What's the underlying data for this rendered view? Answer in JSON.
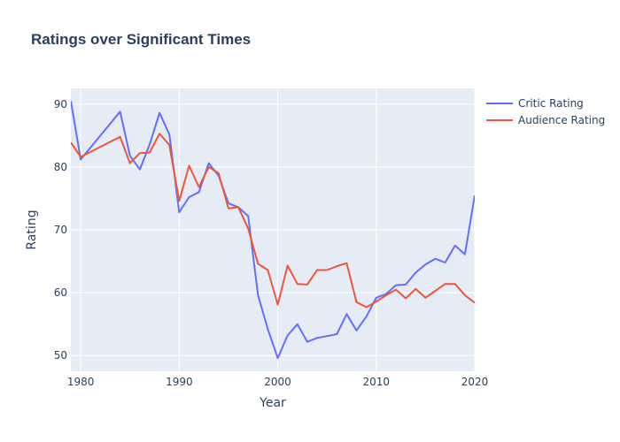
{
  "chart_data": {
    "type": "line",
    "title": "Ratings over Significant Times",
    "xlabel": "Year",
    "ylabel": "Rating",
    "xlim": [
      1979,
      2020
    ],
    "ylim": [
      47.5,
      92.5
    ],
    "xticks": [
      1980,
      1990,
      2000,
      2010,
      2020
    ],
    "yticks": [
      50,
      60,
      70,
      80,
      90
    ],
    "grid": true,
    "legend_position": "top-right",
    "plot_background": "#e5ecf6",
    "grid_color": "#ffffff",
    "series": [
      {
        "name": "Critic Rating",
        "color": "#636efa",
        "x": [
          1979,
          1980,
          1984,
          1985,
          1986,
          1987,
          1988,
          1989,
          1990,
          1991,
          1992,
          1993,
          1994,
          1995,
          1996,
          1997,
          1998,
          1999,
          2000,
          2001,
          2002,
          2003,
          2004,
          2005,
          2006,
          2007,
          2008,
          2009,
          2010,
          2011,
          2012,
          2013,
          2014,
          2015,
          2016,
          2017,
          2018,
          2019,
          2020
        ],
        "values": [
          90.5,
          81.2,
          88.8,
          81.8,
          79.6,
          83.6,
          88.6,
          85.2,
          72.8,
          75.2,
          76.0,
          80.6,
          78.6,
          74.2,
          73.6,
          72.2,
          59.6,
          54.2,
          49.6,
          53.2,
          55.0,
          52.2,
          52.8,
          53.1,
          53.4,
          56.6,
          54.0,
          56.2,
          59.2,
          59.8,
          61.2,
          61.3,
          63.2,
          64.5,
          65.4,
          64.8,
          67.5,
          66.1,
          75.5
        ]
      },
      {
        "name": "Audience Rating",
        "color": "#ef553b",
        "x": [
          1979,
          1980,
          1984,
          1985,
          1986,
          1987,
          1988,
          1989,
          1990,
          1991,
          1992,
          1993,
          1994,
          1995,
          1996,
          1997,
          1998,
          1999,
          2000,
          2001,
          2002,
          2003,
          2004,
          2005,
          2006,
          2007,
          2008,
          2009,
          2010,
          2011,
          2012,
          2013,
          2014,
          2015,
          2016,
          2017,
          2018,
          2019,
          2020
        ],
        "values": [
          83.9,
          81.6,
          84.8,
          80.6,
          82.2,
          82.3,
          85.3,
          83.5,
          74.6,
          80.2,
          76.8,
          80.0,
          79.0,
          73.4,
          73.6,
          70.2,
          64.6,
          63.6,
          58.1,
          64.3,
          61.4,
          61.3,
          63.6,
          63.6,
          64.2,
          64.7,
          58.5,
          57.7,
          58.6,
          59.6,
          60.5,
          59.1,
          60.6,
          59.2,
          60.3,
          61.4,
          61.4,
          59.6,
          58.4
        ]
      }
    ]
  }
}
